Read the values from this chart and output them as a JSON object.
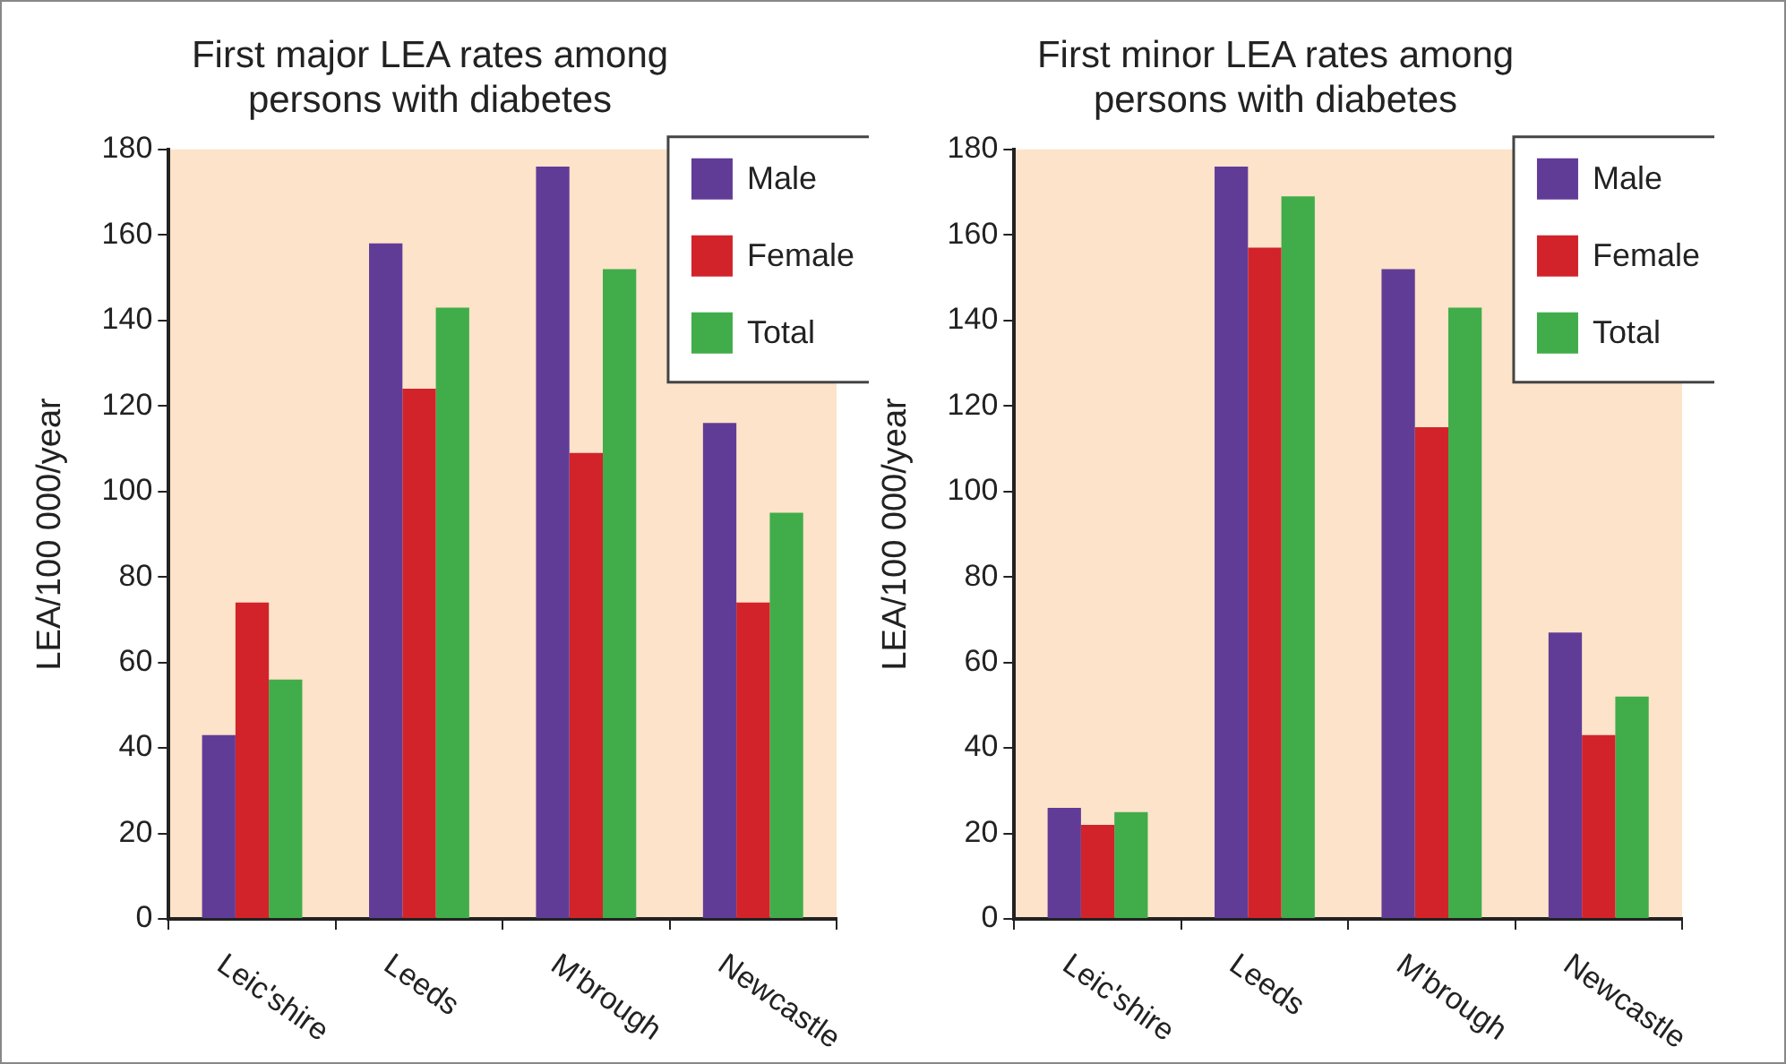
{
  "chart_data": [
    {
      "type": "bar",
      "title": "First major LEA rates among persons with diabetes",
      "ylabel": "LEA/100 000/year",
      "categories": [
        "Leic'shire",
        "Leeds",
        "M'brough",
        "Newcastle"
      ],
      "series": [
        {
          "name": "Male",
          "color": "#613c97",
          "values": [
            43,
            158,
            176,
            116
          ]
        },
        {
          "name": "Female",
          "color": "#d2232a",
          "values": [
            74,
            124,
            109,
            74
          ]
        },
        {
          "name": "Total",
          "color": "#40ad4a",
          "values": [
            56,
            143,
            152,
            95
          ]
        }
      ],
      "ylim": [
        0,
        180
      ],
      "yticks": [
        0,
        20,
        40,
        60,
        80,
        100,
        120,
        140,
        160,
        180
      ],
      "grid": false,
      "legend": "top right"
    },
    {
      "type": "bar",
      "title": "First minor LEA rates among persons with diabetes",
      "ylabel": "LEA/100 000/year",
      "categories": [
        "Leic'shire",
        "Leeds",
        "M'brough",
        "Newcastle"
      ],
      "series": [
        {
          "name": "Male",
          "color": "#613c97",
          "values": [
            26,
            176,
            152,
            67
          ]
        },
        {
          "name": "Female",
          "color": "#d2232a",
          "values": [
            22,
            157,
            115,
            43
          ]
        },
        {
          "name": "Total",
          "color": "#40ad4a",
          "values": [
            25,
            169,
            143,
            52
          ]
        }
      ],
      "ylim": [
        0,
        180
      ],
      "yticks": [
        0,
        20,
        40,
        60,
        80,
        100,
        120,
        140,
        160,
        180
      ],
      "grid": false,
      "legend": "top right"
    }
  ]
}
